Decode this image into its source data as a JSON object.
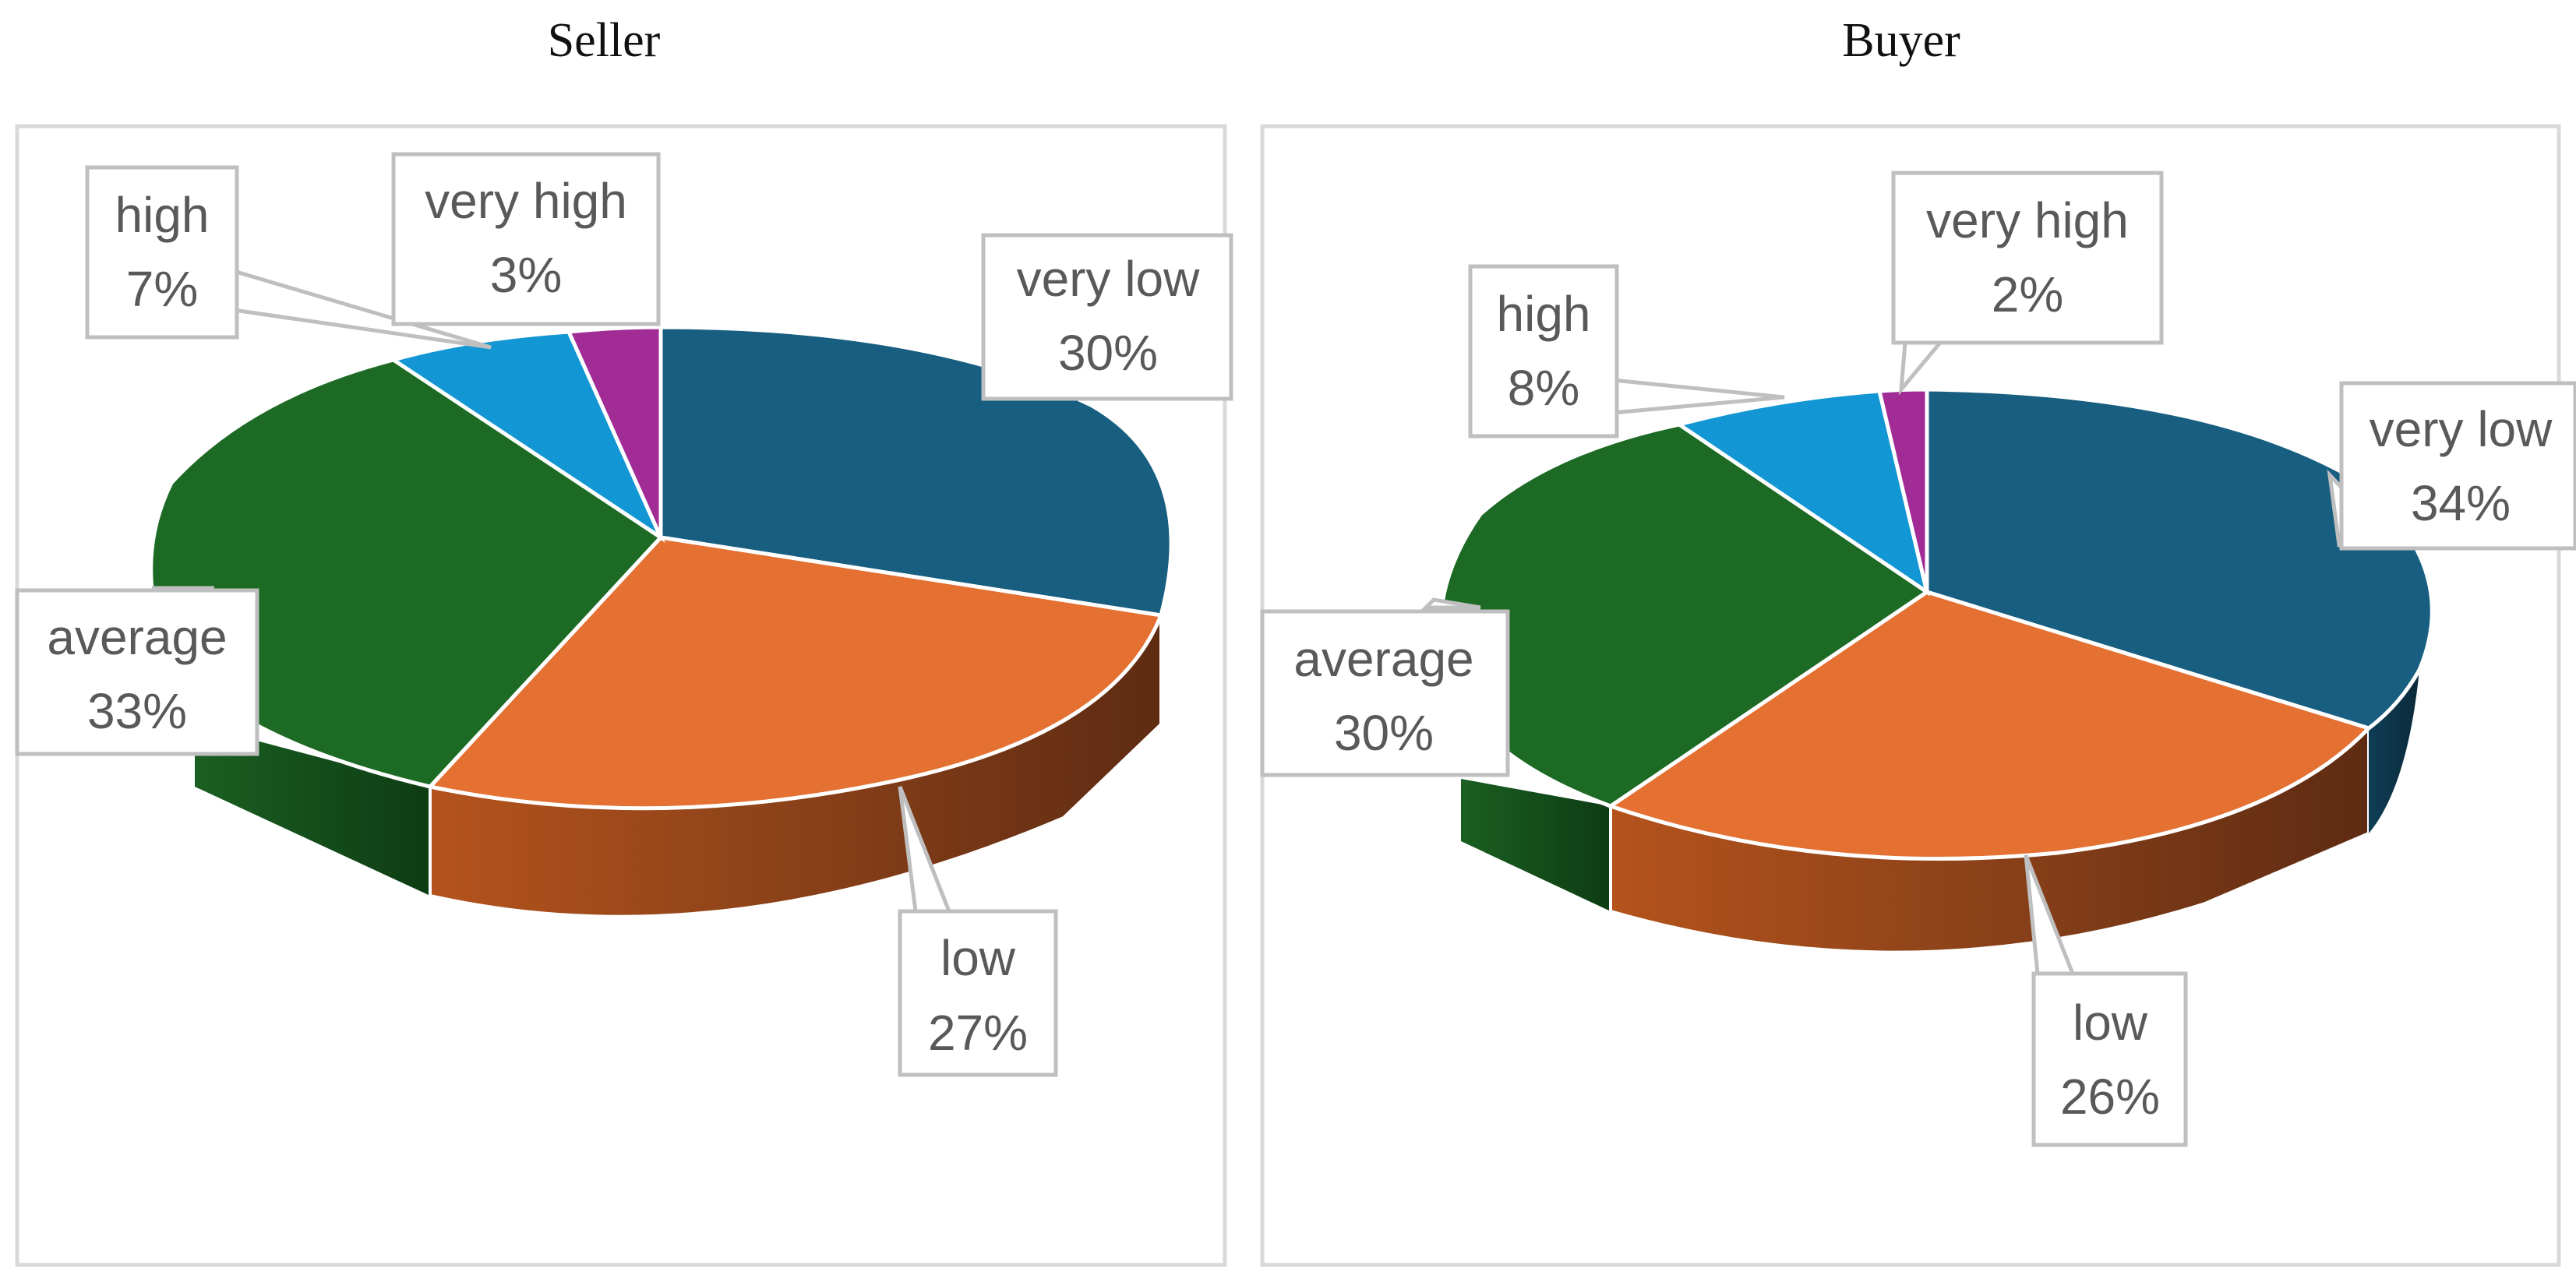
{
  "chart_data": [
    {
      "type": "pie",
      "title": "Seller",
      "slices": [
        {
          "label": "very low",
          "value": 30,
          "text": "30%",
          "color": "#175e80"
        },
        {
          "label": "low",
          "value": 27,
          "text": "27%",
          "color": "#e47032"
        },
        {
          "label": "average",
          "value": 33,
          "text": "33%",
          "color": "#1c6a24"
        },
        {
          "label": "high",
          "value": 7,
          "text": "7%",
          "color": "#1296d4"
        },
        {
          "label": "very high",
          "value": 3,
          "text": "3%",
          "color": "#a12c95"
        }
      ]
    },
    {
      "type": "pie",
      "title": "Buyer",
      "slices": [
        {
          "label": "very low",
          "value": 34,
          "text": "34%",
          "color": "#175e80"
        },
        {
          "label": "low",
          "value": 26,
          "text": "26%",
          "color": "#e47032"
        },
        {
          "label": "average",
          "value": 30,
          "text": "30%",
          "color": "#1c6a24"
        },
        {
          "label": "high",
          "value": 8,
          "text": "8%",
          "color": "#1296d4"
        },
        {
          "label": "very high",
          "value": 2,
          "text": "2%",
          "color": "#a12c95"
        }
      ]
    }
  ]
}
